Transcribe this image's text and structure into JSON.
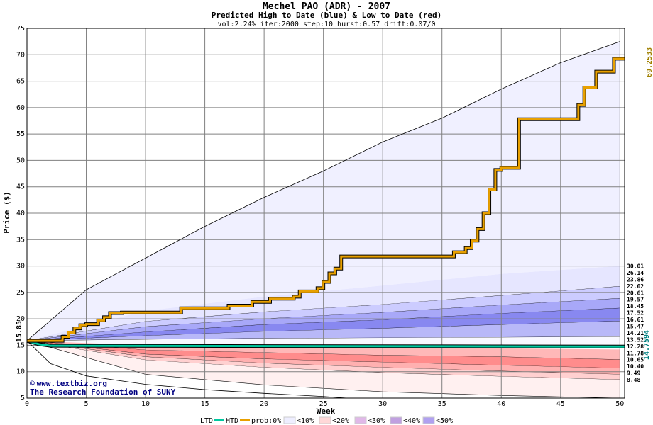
{
  "chart_data": {
    "type": "area",
    "title": "Mechel PAO (ADR) - 2007",
    "subtitle": "Predicted High to Date (blue) &  Low to Date (red)",
    "params": "vol:2.24% iter:2000 step:10 hurst:0.57 drift:0.07/0",
    "xlabel": "Week",
    "ylabel": "Price ($)",
    "xlim": [
      0,
      50.4
    ],
    "ylim": [
      5,
      75
    ],
    "x_ticks": [
      0,
      5,
      10,
      15,
      20,
      25,
      30,
      35,
      40,
      45,
      50
    ],
    "y_ticks": [
      5,
      10,
      15,
      20,
      25,
      30,
      35,
      40,
      45,
      50,
      55,
      60,
      65,
      70,
      75
    ],
    "grid": true,
    "start_price": 15.85,
    "start_label": "15.85",
    "htd_final_label": "69.2533",
    "ltd_final_label": "14.7594",
    "quantile_labels": [
      "30.01",
      "26.14",
      "23.86",
      "22.02",
      "20.61",
      "19.57",
      "18.45",
      "17.52",
      "16.61",
      "15.47",
      "14.21",
      "13.52",
      "12.28",
      "11.78",
      "10.65",
      "10.40",
      "9.49",
      "8.48"
    ],
    "high_envelope": {
      "x": [
        0,
        5,
        10,
        15,
        20,
        25,
        30,
        35,
        40,
        45,
        50
      ],
      "y": [
        15.85,
        25.5,
        31.5,
        37.5,
        43,
        48,
        53.5,
        58,
        63.5,
        68.5,
        72.5
      ]
    },
    "high_bands": [
      {
        "x": [
          0,
          10,
          20,
          30,
          40,
          50
        ],
        "upper": [
          15.85,
          21.5,
          24.2,
          26.3,
          28.5,
          30.01
        ],
        "lower": [
          15.85,
          19.5,
          21.3,
          22.7,
          24.4,
          26.14
        ],
        "color": "#e6e6ff"
      },
      {
        "x": [
          0,
          10,
          20,
          30,
          40,
          50
        ],
        "upper": [
          15.85,
          19.5,
          21.3,
          22.7,
          24.4,
          26.14
        ],
        "lower": [
          15.85,
          18.5,
          20,
          21.2,
          22.6,
          23.86
        ],
        "color": "#ccccff"
      },
      {
        "x": [
          0,
          10,
          20,
          30,
          40,
          50
        ],
        "upper": [
          15.85,
          18.5,
          20,
          21.2,
          22.6,
          23.86
        ],
        "lower": [
          15.85,
          17.5,
          18.9,
          19.8,
          21,
          22.02
        ],
        "color": "#a8a8f8"
      },
      {
        "x": [
          0,
          10,
          20,
          30,
          40,
          50
        ],
        "upper": [
          15.85,
          17.5,
          18.9,
          19.8,
          21,
          22.02
        ],
        "lower": [
          15.85,
          16.8,
          17.6,
          18.2,
          18.9,
          19.57
        ],
        "color": "#8888f0"
      },
      {
        "x": [
          0,
          10,
          20,
          30,
          40,
          50
        ],
        "upper": [
          15.85,
          16.8,
          17.6,
          18.2,
          18.9,
          19.57
        ],
        "lower": [
          15.85,
          16.1,
          16.3,
          16.4,
          16.5,
          16.61
        ],
        "color": "#b8b8f8"
      }
    ],
    "low_bands": [
      {
        "x": [
          0,
          10,
          20,
          30,
          40,
          50
        ],
        "upper": [
          15.85,
          15.0,
          14.8,
          14.6,
          14.4,
          14.21
        ],
        "lower": [
          15.85,
          14.1,
          13.6,
          13.1,
          12.8,
          12.28
        ],
        "color": "#ffb8b8"
      },
      {
        "x": [
          0,
          10,
          20,
          30,
          40,
          50
        ],
        "upper": [
          15.85,
          14.1,
          13.6,
          13.1,
          12.8,
          12.28
        ],
        "lower": [
          15.85,
          13.3,
          12.4,
          11.8,
          11.2,
          10.65
        ],
        "color": "#ff8c8c"
      },
      {
        "x": [
          0,
          10,
          20,
          30,
          40,
          50
        ],
        "upper": [
          15.85,
          13.3,
          12.4,
          11.8,
          11.2,
          10.65
        ],
        "lower": [
          15.85,
          12.8,
          11.6,
          10.8,
          10.1,
          9.49
        ],
        "color": "#ffb0b0"
      },
      {
        "x": [
          0,
          10,
          20,
          30,
          40,
          50
        ],
        "upper": [
          15.85,
          12.8,
          11.6,
          10.8,
          10.1,
          9.49
        ],
        "lower": [
          15.85,
          12.2,
          10.8,
          9.8,
          9.1,
          8.48
        ],
        "color": "#ffd0d0"
      },
      {
        "x": [
          0,
          10,
          20,
          30,
          40,
          50
        ],
        "upper": [
          15.85,
          12.2,
          10.8,
          9.8,
          9.1,
          8.48
        ],
        "lower": [
          15.85,
          9.5,
          7.5,
          6.2,
          5.5,
          5.0
        ],
        "color": "#fff0f0"
      }
    ],
    "low_envelope": {
      "x": [
        0,
        2,
        5,
        10,
        15,
        20,
        25,
        27
      ],
      "y": [
        15.85,
        11.5,
        9.2,
        7.6,
        6.6,
        5.9,
        5.3,
        5.0
      ]
    },
    "htd_series": {
      "name": "HTD",
      "x": [
        0,
        2.5,
        3,
        3.5,
        4,
        4.5,
        5,
        6,
        6.5,
        7,
        7.5,
        8,
        12,
        13,
        16,
        17,
        19,
        20.5,
        22.5,
        23,
        24.5,
        25,
        25.5,
        26,
        26.5,
        35.5,
        36,
        37,
        37.5,
        38,
        38.5,
        39,
        39.5,
        40,
        41,
        41.5,
        46,
        46.5,
        47,
        48,
        49.5,
        50.4
      ],
      "y": [
        15.85,
        15.85,
        16.6,
        17.4,
        18.2,
        18.8,
        19.0,
        19.7,
        20.3,
        21.1,
        21.1,
        21.2,
        21.2,
        22.0,
        22.0,
        22.5,
        23.2,
        23.8,
        24.2,
        25.2,
        25.8,
        27.0,
        28.6,
        29.5,
        31.8,
        31.8,
        32.6,
        33.4,
        34.8,
        37.0,
        40.0,
        44.5,
        48.2,
        48.6,
        48.6,
        57.8,
        57.8,
        60.5,
        63.8,
        66.8,
        69.25,
        69.25
      ],
      "color": "#e8a000"
    },
    "ltd_series": {
      "name": "LTD",
      "x": [
        0,
        1,
        2,
        50.4
      ],
      "y": [
        15.85,
        15.2,
        14.9,
        14.76
      ],
      "color": "#00c8a0"
    },
    "legend": {
      "ltd": "LTD",
      "htd": "HTD",
      "prob0": "prob:0%",
      "p10": "<10%",
      "p20": "<20%",
      "p30": "<30%",
      "p40": "<40%",
      "p50": "<50%",
      "swatches": [
        "#ffffff",
        "#eeeeff",
        "#ffd8d8",
        "#e0b8e8",
        "#c0a0e0",
        "#b0a0f0"
      ]
    },
    "credit_line1": "www.textbiz.org",
    "credit_line2": "The Research Foundation of SUNY",
    "copyright_symbol": "©"
  }
}
